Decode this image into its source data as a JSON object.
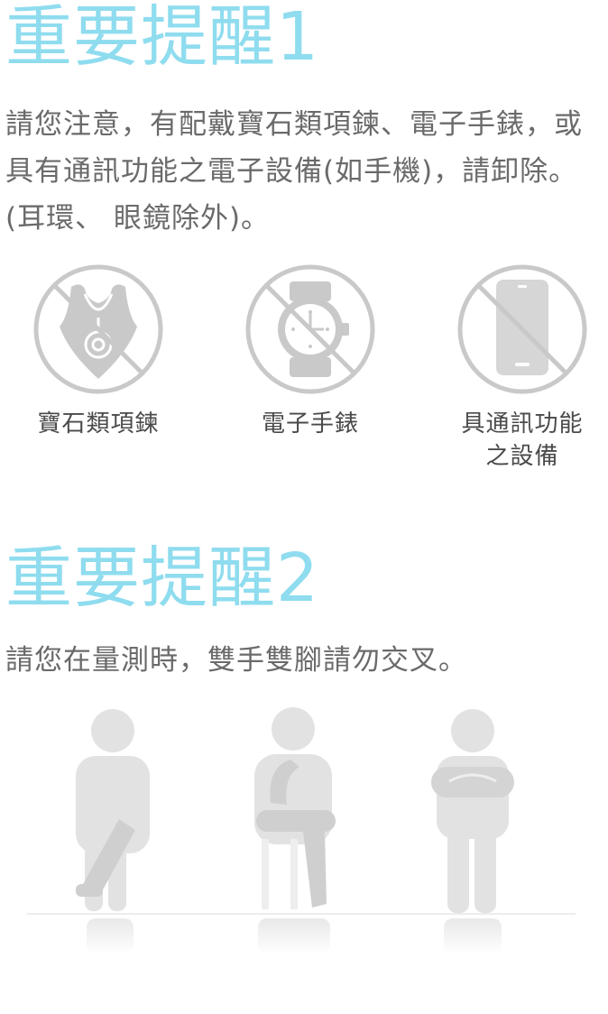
{
  "reminder1": {
    "title": "重要提醒1",
    "text": "請您注意，有配戴寶石類項鍊、電子手錶，或具有通訊功能之電子設備(如手機)，請卸除。(耳環、 眼鏡除外)。"
  },
  "icons": [
    {
      "label": "寶石類項鍊",
      "icon": "necklace-icon"
    },
    {
      "label": "電子手錶",
      "icon": "watch-icon"
    },
    {
      "label_line1": "具通訊功能",
      "label_line2": "之設備",
      "icon": "phone-icon"
    }
  ],
  "reminder2": {
    "title": "重要提醒2",
    "text": "請您在量測時，雙手雙腳請勿交叉。"
  },
  "colors": {
    "heading": "#8fdcef",
    "icon_gray": "#c9c9c9",
    "figure_gray": "#e2e2e2"
  }
}
